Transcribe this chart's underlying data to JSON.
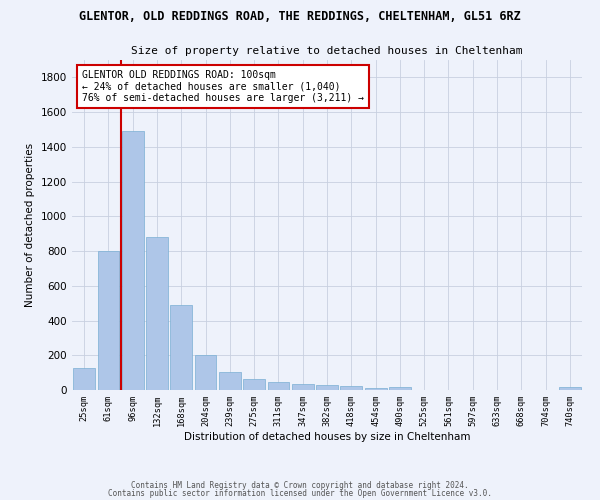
{
  "title_line1": "GLENTOR, OLD REDDINGS ROAD, THE REDDINGS, CHELTENHAM, GL51 6RZ",
  "title_line2": "Size of property relative to detached houses in Cheltenham",
  "xlabel": "Distribution of detached houses by size in Cheltenham",
  "ylabel": "Number of detached properties",
  "categories": [
    "25sqm",
    "61sqm",
    "96sqm",
    "132sqm",
    "168sqm",
    "204sqm",
    "239sqm",
    "275sqm",
    "311sqm",
    "347sqm",
    "382sqm",
    "418sqm",
    "454sqm",
    "490sqm",
    "525sqm",
    "561sqm",
    "597sqm",
    "633sqm",
    "668sqm",
    "704sqm",
    "740sqm"
  ],
  "values": [
    125,
    800,
    1490,
    880,
    490,
    200,
    105,
    65,
    45,
    35,
    30,
    25,
    10,
    20,
    0,
    0,
    0,
    0,
    0,
    0,
    15
  ],
  "bar_color": "#aec6e8",
  "bar_edge_color": "#7aafd4",
  "red_line_index": 2,
  "annotation_text": "GLENTOR OLD REDDINGS ROAD: 100sqm\n← 24% of detached houses are smaller (1,040)\n76% of semi-detached houses are larger (3,211) →",
  "annotation_box_color": "#ffffff",
  "annotation_box_edge_color": "#cc0000",
  "ylim": [
    0,
    1900
  ],
  "yticks": [
    0,
    200,
    400,
    600,
    800,
    1000,
    1200,
    1400,
    1600,
    1800
  ],
  "footer_line1": "Contains HM Land Registry data © Crown copyright and database right 2024.",
  "footer_line2": "Contains public sector information licensed under the Open Government Licence v3.0.",
  "background_color": "#eef2fb",
  "grid_color": "#c8d0e0"
}
